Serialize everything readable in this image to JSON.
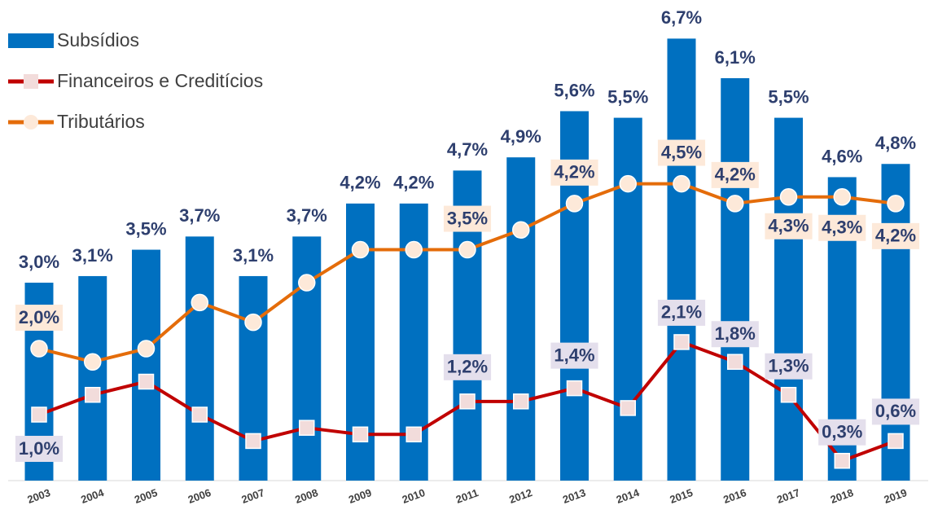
{
  "chart_data": {
    "type": "bar",
    "categories": [
      "2003",
      "2004",
      "2005",
      "2006",
      "2007",
      "2008",
      "2009",
      "2010",
      "2011",
      "2012",
      "2013",
      "2014",
      "2015",
      "2016",
      "2017",
      "2018",
      "2019"
    ],
    "ylim": [
      0,
      7.1
    ],
    "legend": "top-left",
    "series": [
      {
        "name": "Subsídios",
        "type": "bar",
        "color": "#0070c0",
        "values": [
          3.0,
          3.1,
          3.5,
          3.7,
          3.1,
          3.7,
          4.2,
          4.2,
          4.7,
          4.9,
          5.6,
          5.5,
          6.7,
          6.1,
          5.5,
          4.6,
          4.8
        ],
        "value_labels": [
          "3,0%",
          "3,1%",
          "3,5%",
          "3,7%",
          "3,1%",
          "3,7%",
          "4,2%",
          "4,2%",
          "4,7%",
          "4,9%",
          "5,6%",
          "5,5%",
          "6,7%",
          "6,1%",
          "5,5%",
          "4,6%",
          "4,8%"
        ]
      },
      {
        "name": "Financeiros e Creditícios",
        "type": "line",
        "marker": "square",
        "color": "#c00000",
        "values": [
          1.0,
          1.3,
          1.5,
          1.0,
          0.6,
          0.8,
          0.7,
          0.7,
          1.2,
          1.2,
          1.4,
          1.1,
          2.1,
          1.8,
          1.3,
          0.3,
          0.6
        ],
        "value_labels": [
          "1,0%",
          null,
          null,
          null,
          null,
          null,
          null,
          null,
          "1,2%",
          null,
          "1,4%",
          null,
          "2,1%",
          "1,8%",
          "1,3%",
          "0,3%",
          "0,6%"
        ]
      },
      {
        "name": "Tributários",
        "type": "line",
        "marker": "circle",
        "color": "#e46c0a",
        "values": [
          2.0,
          1.8,
          2.0,
          2.7,
          2.4,
          3.0,
          3.5,
          3.5,
          3.5,
          3.8,
          4.2,
          4.5,
          4.5,
          4.2,
          4.3,
          4.3,
          4.2
        ],
        "value_labels": [
          "2,0%",
          null,
          null,
          null,
          null,
          null,
          null,
          null,
          "3,5%",
          null,
          "4,2%",
          null,
          "4,5%",
          "4,2%",
          "4,3%",
          "4,3%",
          "4,2%"
        ]
      }
    ]
  }
}
